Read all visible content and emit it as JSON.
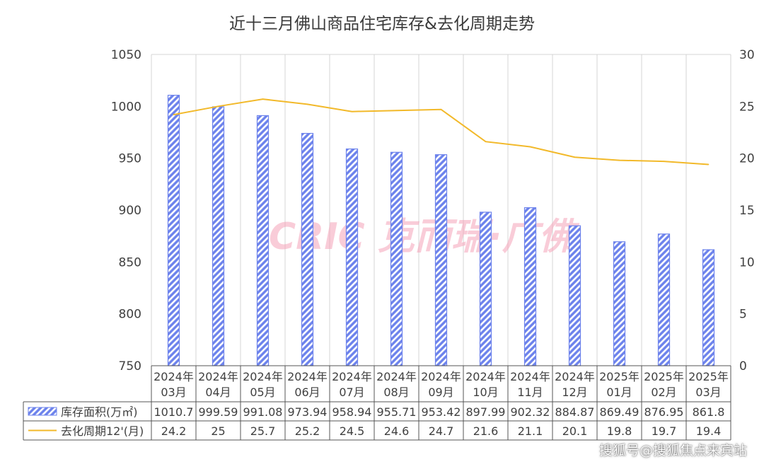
{
  "title": "近十三月佛山商品住宅库存&去化周期走势",
  "watermark": "搜狐号@搜狐焦点来宾站",
  "logo_text": "CRIC 克而瑞·广佛",
  "colors": {
    "bar": "#6d83ec",
    "bar_stripe": "#ffffff",
    "line": "#f2b92a",
    "grid": "#d4d4d4",
    "axis_text": "#404040"
  },
  "chart_data": {
    "type": "bar",
    "title": "近十三月佛山商品住宅库存&去化周期走势",
    "categories": [
      "2024年03月",
      "2024年04月",
      "2024年05月",
      "2024年06月",
      "2024年07月",
      "2024年08月",
      "2024年09月",
      "2024年10月",
      "2024年11月",
      "2024年12月",
      "2025年01月",
      "2025年02月",
      "2025年03月"
    ],
    "category_labels": [
      [
        "2024年",
        "03月"
      ],
      [
        "2024年",
        "04月"
      ],
      [
        "2024年",
        "05月"
      ],
      [
        "2024年",
        "06月"
      ],
      [
        "2024年",
        "07月"
      ],
      [
        "2024年",
        "08月"
      ],
      [
        "2024年",
        "09月"
      ],
      [
        "2024年",
        "10月"
      ],
      [
        "2024年",
        "11月"
      ],
      [
        "2024年",
        "12月"
      ],
      [
        "2025年",
        "01月"
      ],
      [
        "2025年",
        "02月"
      ],
      [
        "2025年",
        "03月"
      ]
    ],
    "series": [
      {
        "name": "库存面积(万㎡)",
        "type": "bar",
        "axis": "left",
        "values": [
          1010.7,
          999.59,
          991.08,
          973.94,
          958.94,
          955.71,
          953.42,
          897.99,
          902.32,
          884.87,
          869.49,
          876.95,
          861.8
        ],
        "labels": [
          "1010.7",
          "999.59",
          "991.08",
          "973.94",
          "958.94",
          "955.71",
          "953.42",
          "897.99",
          "902.32",
          "884.87",
          "869.49",
          "876.95",
          "861.8"
        ]
      },
      {
        "name": "去化周期12'(月)",
        "type": "line",
        "axis": "right",
        "values": [
          24.2,
          25,
          25.7,
          25.2,
          24.5,
          24.6,
          24.7,
          21.6,
          21.1,
          20.1,
          19.8,
          19.7,
          19.4
        ],
        "labels": [
          "24.2",
          "25",
          "25.7",
          "25.2",
          "24.5",
          "24.6",
          "24.7",
          "21.6",
          "21.1",
          "20.1",
          "19.8",
          "19.7",
          "19.4"
        ]
      }
    ],
    "y_left": {
      "min": 750,
      "max": 1050,
      "ticks": [
        "750",
        "800",
        "850",
        "900",
        "950",
        "1000",
        "1050"
      ]
    },
    "y_right": {
      "min": 0,
      "max": 30,
      "ticks": [
        "0",
        "5",
        "10",
        "15",
        "20",
        "25",
        "30"
      ]
    },
    "grid": true,
    "legend": "data-table"
  }
}
